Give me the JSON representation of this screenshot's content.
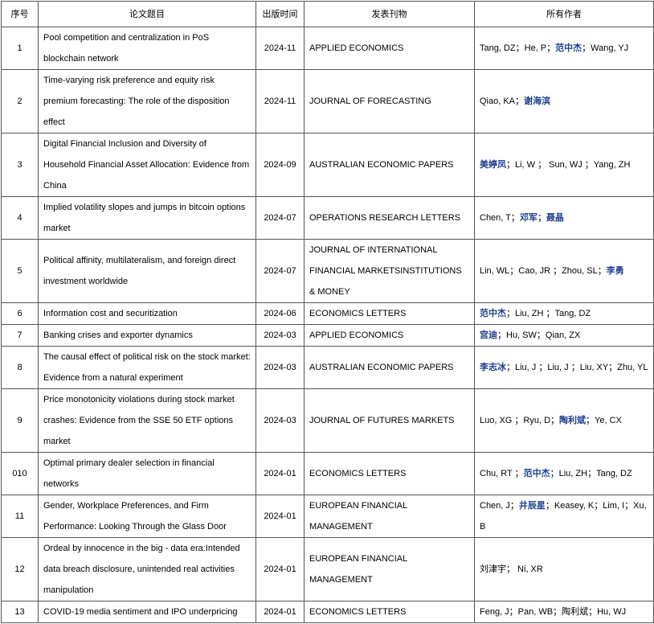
{
  "table": {
    "headers": [
      "序号",
      "论文题目",
      "出版时间",
      "发表刊物",
      "所有作者"
    ],
    "rows": [
      [
        "1",
        "Pool competition and centralization in PoS blockchain network",
        "2024-11",
        "APPLIED ECONOMICS",
        [
          {
            "text": "Tang, DZ；He, P；",
            "bold": false
          },
          {
            "text": "范中杰",
            "bold": true
          },
          {
            "text": "；Wang, YJ",
            "bold": false
          }
        ]
      ],
      [
        "2",
        "Time-varying risk preference and equity risk premium   forecasting: The role of the disposition effect",
        "2024-11",
        "JOURNAL OF FORECASTING",
        [
          {
            "text": "Qiao, KA；",
            "bold": false
          },
          {
            "text": "谢海滨",
            "bold": true
          }
        ]
      ],
      [
        "3",
        "Digital Financial Inclusion and Diversity of Household Financial Asset Allocation: Evidence from China",
        "2024-09",
        "AUSTRALIAN ECONOMIC PAPERS",
        [
          {
            "text": "美婷凤",
            "bold": true
          },
          {
            "text": "；Li, W ；  Sun, WJ ；Yang, ZH",
            "bold": false
          }
        ]
      ],
      [
        "4",
        "Implied volatility slopes and jumps in bitcoin options market",
        "2024-07",
        "OPERATIONS RESEARCH LETTERS",
        [
          {
            "text": "Chen, T；",
            "bold": false
          },
          {
            "text": "邓军",
            "bold": true
          },
          {
            "text": "；",
            "bold": false
          },
          {
            "text": "聂晶",
            "bold": true
          }
        ]
      ],
      [
        "5",
        "Political affinity, multilateralism, and foreign direct investment worldwide",
        "2024-07",
        "JOURNAL OF INTERNATIONAL FINANCIAL MARKETSINSTITUTIONS & MONEY",
        [
          {
            "text": "Lin, WL；Cao, JR ；Zhou, SL；",
            "bold": false
          },
          {
            "text": "李勇",
            "bold": true
          }
        ]
      ],
      [
        "6",
        "Information cost and securitization",
        "2024-06",
        "ECONOMICS LETTERS",
        [
          {
            "text": "范中杰",
            "bold": true
          },
          {
            "text": "；Liu, ZH ；Tang, DZ",
            "bold": false
          }
        ]
      ],
      [
        "7",
        "Banking crises and exporter dynamics",
        "2024-03",
        "APPLIED ECONOMICS",
        [
          {
            "text": "宫迪",
            "bold": true
          },
          {
            "text": "；Hu, SW；Qian, ZX",
            "bold": false
          }
        ]
      ],
      [
        "8",
        "The causal effect of political risk on the stock market: Evidence from a natural experiment",
        "2024-03",
        "AUSTRALIAN ECONOMIC PAPERS",
        [
          {
            "text": "李志冰",
            "bold": true
          },
          {
            "text": "；Liu, J ；Liu, J ；Liu, XY；Zhu, YL",
            "bold": false
          }
        ]
      ],
      [
        "9",
        "Price monotonicity violations during stock market crashes: Evidence from the SSE 50 ETF options market",
        "2024-03",
        "JOURNAL OF FUTURES MARKETS",
        [
          {
            "text": "Luo, XG ；Ryu, D；",
            "bold": false
          },
          {
            "text": "陶利斌",
            "bold": true
          },
          {
            "text": "；Ye, CX",
            "bold": false
          }
        ]
      ],
      [
        "010",
        "Optimal primary dealer selection in financial networks",
        "2024-01",
        "ECONOMICS LETTERS",
        [
          {
            "text": "Chu, RT ；",
            "bold": false
          },
          {
            "text": "范中杰",
            "bold": true
          },
          {
            "text": "；Liu, ZH；Tang, DZ",
            "bold": false
          }
        ]
      ],
      [
        "11",
        "Gender, Workplace Preferences, and Firm Performance: Looking Through the Glass Door",
        "2024-01",
        "EUROPEAN FINANCIAL MANAGEMENT",
        [
          {
            "text": "Chen, J；",
            "bold": false
          },
          {
            "text": "井辰星",
            "bold": true
          },
          {
            "text": "；Keasey, K；Lim, I；Xu, B",
            "bold": false
          }
        ]
      ],
      [
        "12",
        "Ordeal by innocence in the big - data era:Intended data breach disclosure, unintended real activities manipulation",
        "2024-01",
        "EUROPEAN FINANCIAL MANAGEMENT",
        [
          {
            "text": "刘津宇；  Ni, XR",
            "bold": false
          }
        ]
      ],
      [
        "13",
        "COVID-19 media sentiment and IPO underpricing",
        "2024-01",
        "ECONOMICS LETTERS",
        [
          {
            "text": "Feng, J；Pan, WB；陶利斌；Hu, WJ",
            "bold": false
          }
        ]
      ]
    ]
  }
}
